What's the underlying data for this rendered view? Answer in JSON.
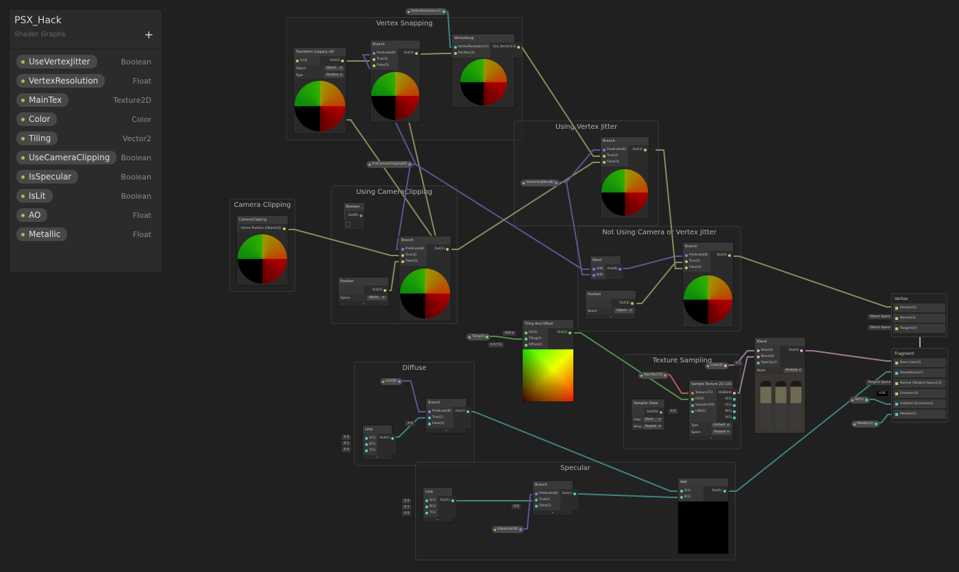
{
  "blackboard": {
    "title": "PSX_Hack",
    "subtitle": "Shader Graphs",
    "add_button": "+",
    "properties": [
      {
        "name": "UseVertexJitter",
        "type": "Boolean"
      },
      {
        "name": "VertexResolution",
        "type": "Float"
      },
      {
        "name": "MainTex",
        "type": "Texture2D"
      },
      {
        "name": "Color",
        "type": "Color"
      },
      {
        "name": "Tiling",
        "type": "Vector2"
      },
      {
        "name": "UseCameraClipping",
        "type": "Boolean"
      },
      {
        "name": "IsSpecular",
        "type": "Boolean"
      },
      {
        "name": "IsLit",
        "type": "Boolean"
      },
      {
        "name": "AO",
        "type": "Float"
      },
      {
        "name": "Metallic",
        "type": "Float"
      }
    ]
  },
  "groups": [
    {
      "title": "Vertex Snapping"
    },
    {
      "title": "Using Vertex Jitter"
    },
    {
      "title": "Using CameraClipping"
    },
    {
      "title": "Camera Clipping"
    },
    {
      "title": "Not Using Camera or Vertex Jitter"
    },
    {
      "title": "Texture Sampling"
    },
    {
      "title": "Diffuse"
    },
    {
      "title": "Specular"
    }
  ],
  "nodes": [
    {
      "title": "Transform (Legacy v0)",
      "inputs": [
        "In(3)"
      ],
      "outputs": [
        "Out(3)"
      ],
      "controls": [
        {
          "label": "Object",
          "value": "World"
        },
        {
          "label": "Type",
          "value": "Position"
        }
      ]
    },
    {
      "title": "Branch",
      "inputs": [
        "Predicate(B)",
        "True(3)",
        "False(3)"
      ],
      "outputs": [
        "Out(3)"
      ],
      "controls": []
    },
    {
      "title": "VertexSnap",
      "inputs": [
        "VertexResolution(1)",
        "Position(3)"
      ],
      "outputs": [
        "Out_Vector3(3)"
      ],
      "controls": []
    },
    {
      "title": "Branch",
      "inputs": [
        "Predicate(B)",
        "True(3)",
        "False(3)"
      ],
      "outputs": [
        "Out(3)"
      ],
      "controls": []
    },
    {
      "title": "Boolean",
      "inputs": [],
      "outputs": [
        "Out(B)"
      ],
      "controls": []
    },
    {
      "title": "Branch",
      "inputs": [
        "Predicate(B)",
        "True(3)",
        "False(3)"
      ],
      "outputs": [
        "Out(3)"
      ],
      "controls": []
    },
    {
      "title": "Position",
      "inputs": [],
      "outputs": [
        "Out(3)"
      ],
      "controls": [
        {
          "label": "Space",
          "value": "World"
        }
      ],
      "expand": "⌄"
    },
    {
      "title": "CameraClipping",
      "inputs": [],
      "outputs": [
        "Vertex Position (Object)(3)"
      ],
      "controls": []
    },
    {
      "title": "Nand",
      "inputs": [
        "A(B)",
        "B(B)"
      ],
      "outputs": [
        "Out(B)"
      ],
      "controls": []
    },
    {
      "title": "Position",
      "inputs": [],
      "outputs": [
        "Out(3)"
      ],
      "controls": [
        {
          "label": "Space",
          "value": "Object"
        }
      ],
      "expand": "⌄"
    },
    {
      "title": "Branch",
      "inputs": [
        "Predicate(B)",
        "True(3)",
        "False(3)"
      ],
      "outputs": [
        "Out(3)"
      ],
      "controls": []
    },
    {
      "title": "Tiling And Offset",
      "inputs": [
        "UV(2)",
        "Tiling(2)",
        "Offset(2)"
      ],
      "outputs": [
        "Out(2)"
      ],
      "controls": []
    },
    {
      "title": "Blend",
      "inputs": [
        "Base(4)",
        "Blend(4)",
        "Opacity(1)"
      ],
      "outputs": [
        "Out(4)"
      ],
      "controls": [
        {
          "label": "Mode",
          "value": "Multiply"
        }
      ]
    },
    {
      "title": "Sample Texture 2D LOD",
      "inputs": [
        "Texture(T2)",
        "UV(2)",
        "Sampler(SS)",
        "LOD(1)"
      ],
      "outputs": [
        "RGBA(4)",
        "R(1)",
        "G(1)",
        "B(1)",
        "A(1)"
      ],
      "controls": [
        {
          "label": "Type",
          "value": "Default"
        },
        {
          "label": "Space",
          "value": "Tangent"
        }
      ],
      "expand": "⌄"
    },
    {
      "title": "Sampler State",
      "inputs": [],
      "outputs": [
        "Out(SS)"
      ],
      "controls": [
        {
          "label": "Filter",
          "value": "Point"
        },
        {
          "label": "Wrap",
          "value": "Repeat"
        }
      ]
    },
    {
      "title": "Branch",
      "inputs": [
        "Predicate(B)",
        "True(1)",
        "False(1)"
      ],
      "outputs": [
        "Out(1)"
      ],
      "controls": [],
      "expand": "⌄"
    },
    {
      "title": "Lerp",
      "inputs": [
        "A(1)",
        "B(1)",
        "T(1)"
      ],
      "outputs": [
        "Out(1)"
      ],
      "controls": [],
      "expand": "⌄"
    },
    {
      "title": "Lerp",
      "inputs": [
        "A(1)",
        "B(1)",
        "T(1)"
      ],
      "outputs": [
        "Out(1)"
      ],
      "controls": [],
      "expand": "⌄"
    },
    {
      "title": "Branch",
      "inputs": [
        "Predicate(B)",
        "True(1)",
        "False(1)"
      ],
      "outputs": [
        "Out(1)"
      ],
      "controls": [],
      "expand": "⌄"
    },
    {
      "title": "Add",
      "inputs": [
        "A(1)",
        "B(1)"
      ],
      "outputs": [
        "Out(1)"
      ],
      "controls": []
    }
  ],
  "property_nodes": [
    "VertexResolution(1)",
    "UseCameraClipping(B)",
    "UseVertexJitter(B)",
    "Tiling(2)",
    "MainTex(T2)",
    "Color(4)",
    "IsLit(B)",
    "IsSpecular(B)",
    "AO(1)",
    "Metallic(1)"
  ],
  "inline_fields": [
    "X 0",
    "X 1",
    "X 0",
    "X 0",
    "X 0",
    "X 1",
    "X 0",
    "X 0",
    "UV0 ▾",
    "X 0   Y 0",
    "X 0",
    "X 1",
    "Object Space",
    "Object Space",
    "Tangent Space",
    "HDR"
  ],
  "master": {
    "vertex": {
      "title": "Vertex",
      "slots": [
        "Position(3)",
        "Normal(3)",
        "Tangent(3)"
      ]
    },
    "fragment": {
      "title": "Fragment",
      "slots": [
        "Base Color(3)",
        "Smoothness(1)",
        "Normal (Tangent Space)(3)",
        "Emission(3)",
        "Ambient Occlusion(1)",
        "Metallic(1)"
      ]
    }
  },
  "colors": {
    "vector3": "#c8c86a",
    "boolean": "#8a7ad8",
    "float": "#5ac8c8",
    "vector2": "#7ad86a",
    "vector4": "#e2a0e0",
    "texture": "#e06a6a",
    "sampler": "#999999",
    "wire_vector3": "#8b8c5e",
    "wire_boolean": "#5f5596",
    "wire_float": "#3f8585",
    "wire_vector2": "#4f8f4f",
    "wire_texture": "#b0615a",
    "wire_vector4": "#9c7b96"
  }
}
